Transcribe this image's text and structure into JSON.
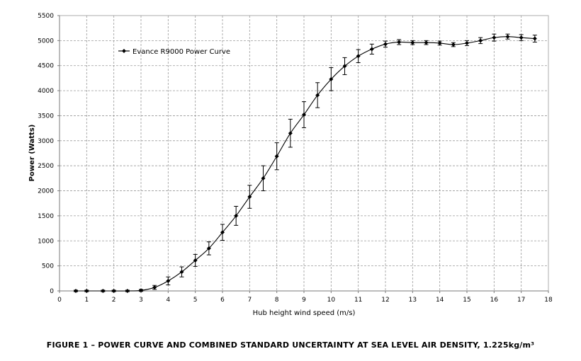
{
  "chart_data": {
    "type": "line",
    "title": "",
    "xlabel": "Hub height wind speed  (m/s)",
    "ylabel": "Power  (Watts)",
    "xlim": [
      0,
      18
    ],
    "ylim": [
      0,
      5500
    ],
    "x_ticks": [
      "0",
      "1",
      "2",
      "3",
      "4",
      "5",
      "6",
      "7",
      "8",
      "9",
      "10",
      "11",
      "12",
      "13",
      "14",
      "15",
      "16",
      "17",
      "18"
    ],
    "y_ticks": [
      "0",
      "500",
      "1000",
      "1500",
      "2000",
      "2500",
      "3000",
      "3500",
      "4000",
      "4500",
      "5000",
      "5500"
    ],
    "grid": true,
    "legend_position": "top-left",
    "series": [
      {
        "name": "Evance R9000 Power Curve",
        "x": [
          0.6,
          1.0,
          1.6,
          2.0,
          2.5,
          3.0,
          3.5,
          4.0,
          4.5,
          5.0,
          5.5,
          6.0,
          6.5,
          7.0,
          7.5,
          8.0,
          8.5,
          9.0,
          9.5,
          10.0,
          10.5,
          11.0,
          11.5,
          12.0,
          12.5,
          13.0,
          13.5,
          14.0,
          14.5,
          15.0,
          15.5,
          16.0,
          16.5,
          17.0,
          17.5
        ],
        "y": [
          0,
          0,
          0,
          0,
          0,
          10,
          70,
          200,
          380,
          610,
          850,
          1170,
          1500,
          1880,
          2250,
          2690,
          3150,
          3520,
          3910,
          4230,
          4490,
          4690,
          4830,
          4930,
          4970,
          4960,
          4960,
          4950,
          4920,
          4950,
          5000,
          5060,
          5080,
          5060,
          5040
        ],
        "error": [
          15,
          15,
          15,
          15,
          15,
          20,
          40,
          80,
          100,
          120,
          130,
          160,
          190,
          230,
          250,
          270,
          280,
          260,
          250,
          230,
          170,
          130,
          100,
          60,
          50,
          40,
          40,
          40,
          40,
          50,
          60,
          70,
          50,
          60,
          70
        ]
      }
    ]
  },
  "caption": "FIGURE 1 – POWER CURVE AND COMBINED STANDARD UNCERTAINTY AT SEA LEVEL AIR DENSITY, 1.225kg/m³"
}
